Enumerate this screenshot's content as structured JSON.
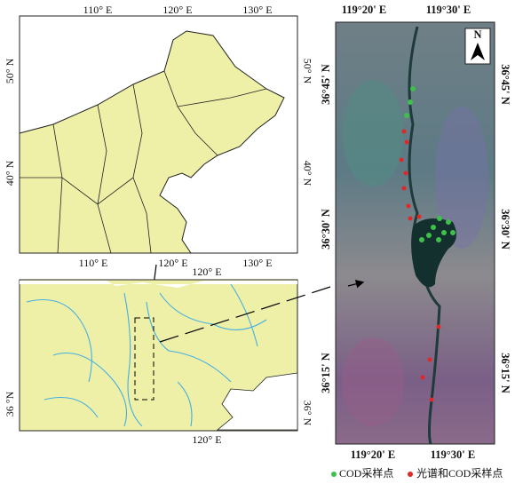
{
  "overview_map": {
    "top_labels": [
      "110° E",
      "120° E",
      "130° E"
    ],
    "bottom_labels": [
      "110° E",
      "120° E",
      "130° E"
    ],
    "left_labels": [
      "50° N",
      "40° N"
    ],
    "right_labels": [
      "50° N",
      "40° N"
    ]
  },
  "regional_map": {
    "top_label": "120° E",
    "bottom_label": "120° E",
    "left_label": "36 °N",
    "right_label": "36° N"
  },
  "satellite_image": {
    "top_labels": [
      "119°20' E",
      "119°30' E"
    ],
    "bottom_labels": [
      "119°20' E",
      "119°30' E"
    ],
    "left_labels": [
      "36°45' N",
      "36°30' N",
      "36°15' N"
    ],
    "right_labels": [
      "36°45' N",
      "36°30' N",
      "36°15' N"
    ],
    "north_arrow": "N"
  },
  "legend": {
    "items": [
      "COD采样点",
      "光谱和COD采样点"
    ]
  }
}
